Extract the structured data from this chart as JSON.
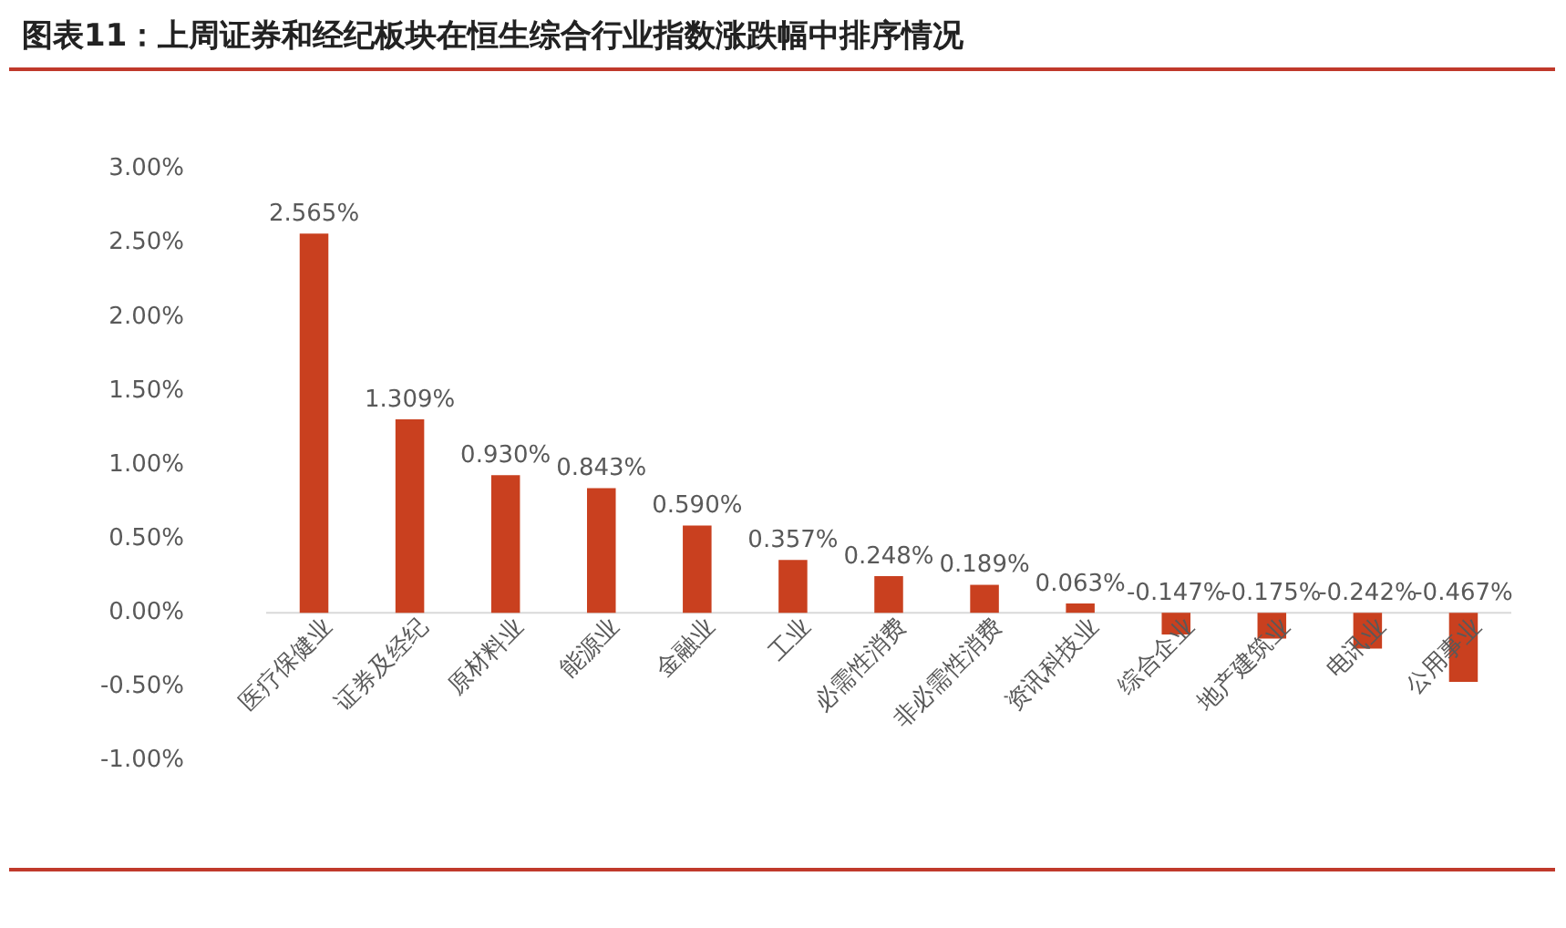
{
  "chart_data": {
    "type": "bar",
    "title": "图表11：上周证券和经纪板块在恒生综合行业指数涨跌幅中排序情况",
    "categories": [
      "医疗保健业",
      "证券及经纪",
      "原材料业",
      "能源业",
      "金融业",
      "工业",
      "必需性消费",
      "非必需性消费",
      "资讯科技业",
      "综合企业",
      "地产建筑业",
      "电讯业",
      "公用事业"
    ],
    "values": [
      2.565,
      1.309,
      0.93,
      0.843,
      0.59,
      0.357,
      0.248,
      0.189,
      0.063,
      -0.147,
      -0.175,
      -0.242,
      -0.467
    ],
    "value_labels": [
      "2.565%",
      "1.309%",
      "0.930%",
      "0.843%",
      "0.590%",
      "0.357%",
      "0.248%",
      "0.189%",
      "0.063%",
      "-0.147%",
      "-0.175%",
      "-0.242%",
      "-0.467%"
    ],
    "color": "#c9401f",
    "ylim": [
      -1,
      3
    ],
    "yticks": [
      {
        "value": -1,
        "label": "-1.00%"
      },
      {
        "value": -0.5,
        "label": "-0.50%"
      },
      {
        "value": 0,
        "label": "0.00%"
      },
      {
        "value": 0.5,
        "label": "0.50%"
      },
      {
        "value": 1,
        "label": "1.00%"
      },
      {
        "value": 1.5,
        "label": "1.50%"
      },
      {
        "value": 2,
        "label": "2.00%"
      },
      {
        "value": 2.5,
        "label": "2.50%"
      },
      {
        "value": 3,
        "label": "3.00%"
      }
    ],
    "grid": false,
    "legend": false
  }
}
